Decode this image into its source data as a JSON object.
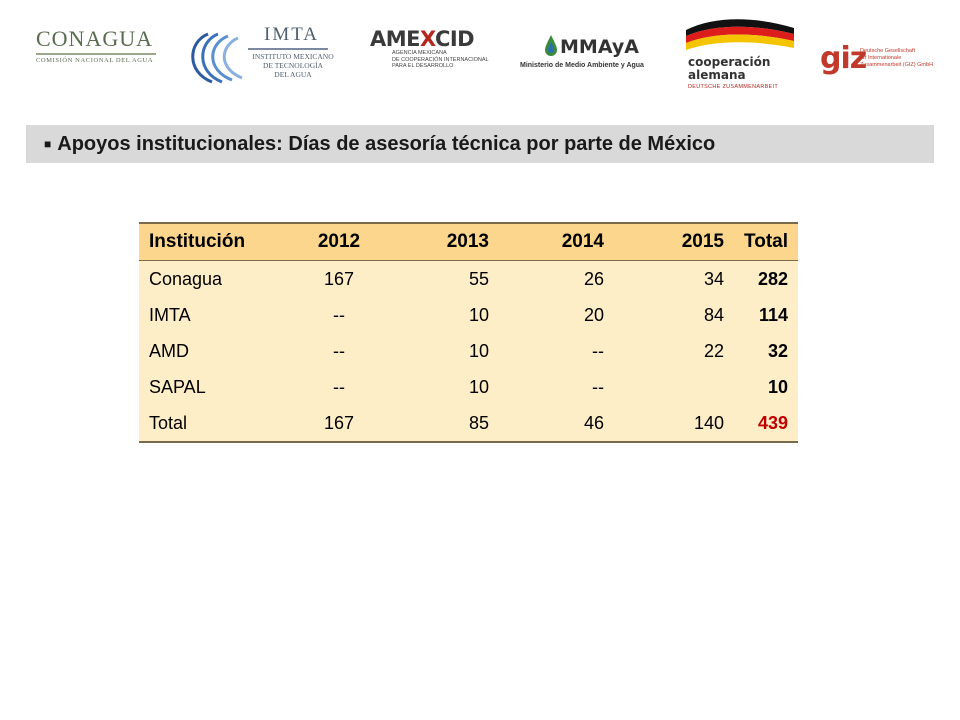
{
  "logos": {
    "conagua": {
      "name": "CONAGUA",
      "subtitle": "COMISIÓN NACIONAL DEL AGUA"
    },
    "imta": {
      "name": "IMTA",
      "subtitle_lines": [
        "INSTITUTO MEXICANO",
        "DE TECNOLOGÍA",
        "DEL AGUA"
      ]
    },
    "amexcid": {
      "name_part1": "AME",
      "name_part2": "X",
      "name_part3": "CID",
      "subtitle_lines": [
        "AGENCIA MEXICANA",
        "DE COOPERACIÓN INTERNACIONAL",
        "PARA EL DESARROLLO"
      ]
    },
    "mmaya": {
      "name": "MMAyA",
      "subtitle": "Ministerio de Medio Ambiente y Agua"
    },
    "cooperacion": {
      "line1": "cooperación",
      "line2": "alemana",
      "subtitle": "DEUTSCHE ZUSAMMENARBEIT"
    },
    "giz": {
      "name": "giz",
      "subtitle_lines": [
        "Deutsche Gesellschaft",
        "für Internationale",
        "Zusammenarbeit (GIZ) GmbH"
      ]
    }
  },
  "title": {
    "bullet": "■",
    "text": "Apoyos institucionales: Días de asesoría técnica por parte de México"
  },
  "table": {
    "headers": [
      "Institución",
      "2012",
      "2013",
      "2014",
      "2015",
      "Total"
    ],
    "rows": [
      [
        "Conagua",
        "167",
        "55",
        "26",
        "34",
        "282"
      ],
      [
        "IMTA",
        "--",
        "10",
        "20",
        "84",
        "114"
      ],
      [
        "AMD",
        "--",
        "10",
        "--",
        "22",
        "32"
      ],
      [
        "SAPAL",
        "--",
        "10",
        "--",
        "",
        "10"
      ],
      [
        "Total",
        "167",
        "85",
        "46",
        "140",
        "439"
      ]
    ]
  },
  "colors": {
    "header_bg": "#fbd68c",
    "row_bg": "#fdeec8",
    "grand_total": "#c00000",
    "title_band": "#d9d9d9"
  }
}
